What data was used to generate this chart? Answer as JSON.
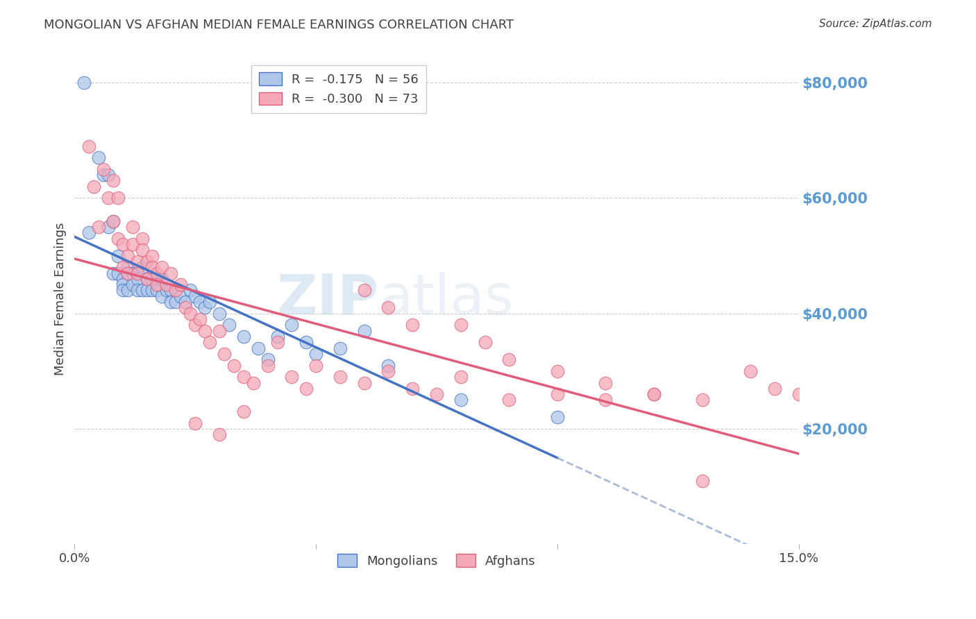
{
  "title": "MONGOLIAN VS AFGHAN MEDIAN FEMALE EARNINGS CORRELATION CHART",
  "source": "Source: ZipAtlas.com",
  "ylabel": "Median Female Earnings",
  "right_ytick_labels": [
    "$80,000",
    "$60,000",
    "$40,000",
    "$20,000"
  ],
  "right_ytick_values": [
    80000,
    60000,
    40000,
    20000
  ],
  "ytick_color": "#5b9bd5",
  "title_color": "#404040",
  "watermark_zip": "ZIP",
  "watermark_atlas": "atlas",
  "mongolian_color": "#aec6e8",
  "afghan_color": "#f4a8b8",
  "mongolian_line_color": "#4472c4",
  "afghan_line_color": "#e05c7a",
  "mongolian_dash_color": "#9ab0d0",
  "xmin": 0.0,
  "xmax": 0.15,
  "ymin": 0,
  "ymax": 85000,
  "mongolian_R": -0.175,
  "mongolian_N": 56,
  "afghan_R": -0.3,
  "afghan_N": 73,
  "mongolians": {
    "x": [
      0.002,
      0.003,
      0.005,
      0.006,
      0.007,
      0.007,
      0.008,
      0.008,
      0.009,
      0.009,
      0.01,
      0.01,
      0.01,
      0.011,
      0.011,
      0.011,
      0.012,
      0.012,
      0.013,
      0.013,
      0.013,
      0.014,
      0.014,
      0.015,
      0.015,
      0.016,
      0.016,
      0.017,
      0.017,
      0.018,
      0.018,
      0.019,
      0.02,
      0.02,
      0.021,
      0.022,
      0.023,
      0.024,
      0.025,
      0.026,
      0.027,
      0.028,
      0.03,
      0.032,
      0.035,
      0.038,
      0.04,
      0.042,
      0.045,
      0.048,
      0.05,
      0.055,
      0.06,
      0.065,
      0.08,
      0.1
    ],
    "y": [
      80000,
      54000,
      67000,
      64000,
      55000,
      64000,
      56000,
      47000,
      50000,
      47000,
      46000,
      45000,
      44000,
      48000,
      47000,
      44000,
      47000,
      45000,
      47000,
      46000,
      44000,
      48000,
      44000,
      46000,
      44000,
      46000,
      44000,
      45000,
      44000,
      46000,
      43000,
      44000,
      44000,
      42000,
      42000,
      43000,
      42000,
      44000,
      43000,
      42000,
      41000,
      42000,
      40000,
      38000,
      36000,
      34000,
      32000,
      36000,
      38000,
      35000,
      33000,
      34000,
      37000,
      31000,
      25000,
      22000
    ]
  },
  "afghans": {
    "x": [
      0.003,
      0.004,
      0.005,
      0.006,
      0.007,
      0.008,
      0.008,
      0.009,
      0.009,
      0.01,
      0.01,
      0.011,
      0.011,
      0.012,
      0.012,
      0.013,
      0.013,
      0.014,
      0.014,
      0.015,
      0.015,
      0.016,
      0.016,
      0.017,
      0.017,
      0.018,
      0.019,
      0.02,
      0.021,
      0.022,
      0.023,
      0.024,
      0.025,
      0.026,
      0.027,
      0.028,
      0.03,
      0.031,
      0.033,
      0.035,
      0.037,
      0.04,
      0.042,
      0.045,
      0.048,
      0.05,
      0.055,
      0.06,
      0.065,
      0.07,
      0.075,
      0.08,
      0.09,
      0.1,
      0.11,
      0.12,
      0.13,
      0.14,
      0.145,
      0.15,
      0.025,
      0.03,
      0.035,
      0.06,
      0.065,
      0.07,
      0.08,
      0.085,
      0.09,
      0.1,
      0.11,
      0.12,
      0.13
    ],
    "y": [
      69000,
      62000,
      55000,
      65000,
      60000,
      63000,
      56000,
      53000,
      60000,
      52000,
      48000,
      50000,
      47000,
      55000,
      52000,
      49000,
      47000,
      53000,
      51000,
      49000,
      46000,
      50000,
      48000,
      47000,
      45000,
      48000,
      45000,
      47000,
      44000,
      45000,
      41000,
      40000,
      38000,
      39000,
      37000,
      35000,
      37000,
      33000,
      31000,
      29000,
      28000,
      31000,
      35000,
      29000,
      27000,
      31000,
      29000,
      28000,
      30000,
      27000,
      26000,
      29000,
      25000,
      26000,
      25000,
      26000,
      25000,
      30000,
      27000,
      26000,
      21000,
      19000,
      23000,
      44000,
      41000,
      38000,
      38000,
      35000,
      32000,
      30000,
      28000,
      26000,
      11000
    ]
  }
}
